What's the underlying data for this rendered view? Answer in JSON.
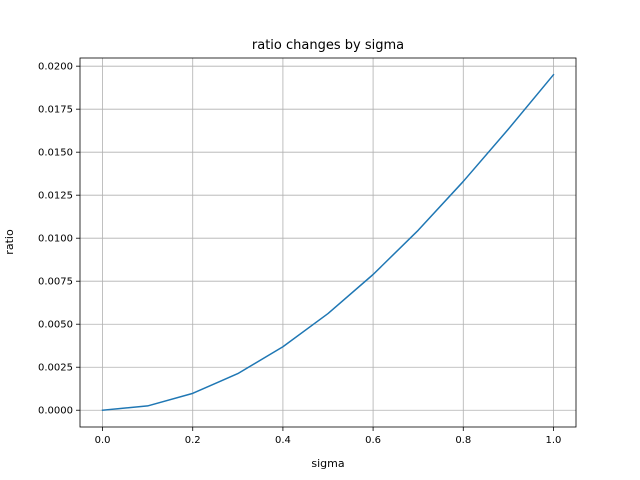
{
  "chart_data": {
    "type": "line",
    "title": "ratio changes by sigma",
    "xlabel": "sigma",
    "ylabel": "ratio",
    "xlim": [
      -0.05,
      1.05
    ],
    "ylim": [
      -0.000975,
      0.020475
    ],
    "xticks": [
      0.0,
      0.2,
      0.4,
      0.6,
      0.8,
      1.0
    ],
    "xtick_labels": [
      "0.0",
      "0.2",
      "0.4",
      "0.6",
      "0.8",
      "1.0"
    ],
    "yticks": [
      0.0,
      0.0025,
      0.005,
      0.0075,
      0.01,
      0.0125,
      0.015,
      0.0175,
      0.02
    ],
    "ytick_labels": [
      "0.0000",
      "0.0025",
      "0.0050",
      "0.0075",
      "0.0100",
      "0.0125",
      "0.0150",
      "0.0175",
      "0.0200"
    ],
    "grid": true,
    "series": [
      {
        "color": "#1f77b4",
        "x": [
          0.0,
          0.1,
          0.2,
          0.3,
          0.4,
          0.5,
          0.6,
          0.7,
          0.8,
          0.9,
          1.0
        ],
        "y": [
          0.0,
          0.00025,
          0.00098,
          0.00213,
          0.00369,
          0.00562,
          0.00789,
          0.01046,
          0.0133,
          0.01634,
          0.0195
        ]
      }
    ]
  }
}
